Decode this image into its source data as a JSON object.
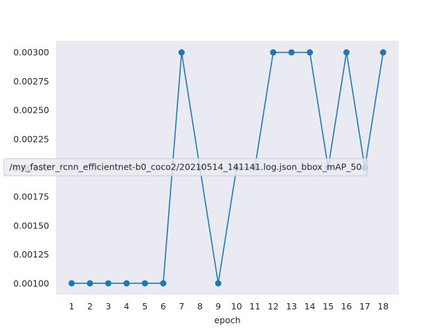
{
  "chart_data": {
    "type": "line",
    "title": "",
    "xlabel": "epoch",
    "ylabel": "",
    "x": [
      1,
      2,
      3,
      4,
      5,
      6,
      7,
      8,
      9,
      10,
      11,
      12,
      13,
      14,
      15,
      16,
      17,
      18
    ],
    "x_tick_labels": [
      "1",
      "2",
      "3",
      "4",
      "5",
      "6",
      "7",
      "8",
      "9",
      "10",
      "11",
      "12",
      "13",
      "14",
      "15",
      "16",
      "17",
      "18"
    ],
    "series": [
      {
        "name": "/my_faster_rcnn_efficientnet-b0_coco2/20210514_141141.log.json_bbox_mAP_50",
        "color": "#1f77b4",
        "marker": "circle",
        "values": [
          0.001,
          0.001,
          0.001,
          0.001,
          0.001,
          0.001,
          0.003,
          0.002,
          0.001,
          0.002,
          0.002,
          0.003,
          0.003,
          0.003,
          0.002,
          0.003,
          0.002,
          0.003
        ]
      }
    ],
    "y_ticks": [
      0.001,
      0.00125,
      0.0015,
      0.00175,
      0.002,
      0.00225,
      0.0025,
      0.00275,
      0.003
    ],
    "y_tick_labels": [
      "0.00100",
      "0.00125",
      "0.00150",
      "0.00175",
      "0.00200",
      "0.00225",
      "0.00250",
      "0.00275",
      "0.00300"
    ],
    "xlim": [
      0.15,
      18.85
    ],
    "ylim": [
      0.0009,
      0.0031
    ],
    "grid": false,
    "legend_position": "center",
    "plot_background": "#eaeaf2"
  }
}
